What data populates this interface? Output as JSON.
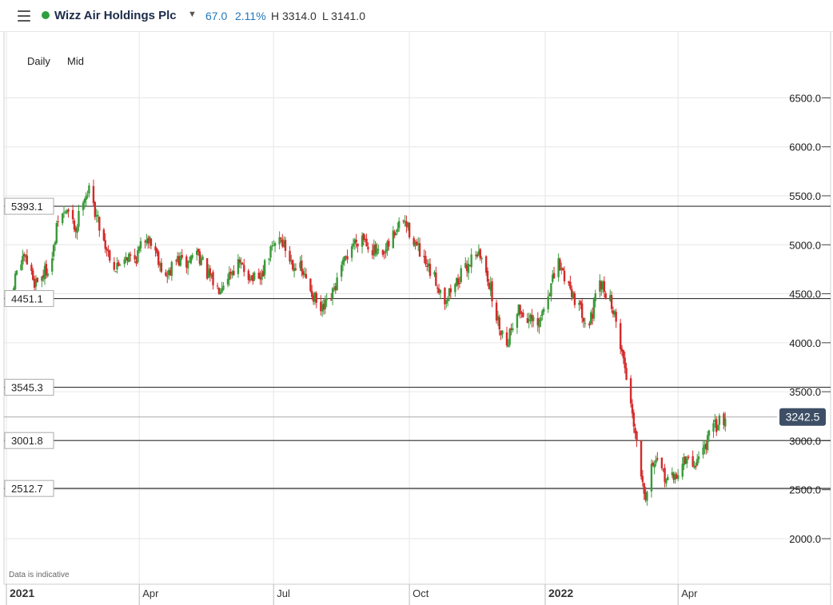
{
  "header": {
    "instrument": "Wizz Air Holdings Plc",
    "change": "67.0",
    "change_pct": "2.11%",
    "high": "H 3314.0",
    "low": "L 3141.0",
    "live_color": "#2e9e3e"
  },
  "controls": {
    "interval": "Daily",
    "price_type": "Mid"
  },
  "footer": {
    "note": "Data is indicative"
  },
  "chart_data": {
    "type": "candlestick",
    "title": "",
    "xlabel": "",
    "ylabel": "",
    "ylim": [
      1750,
      6750
    ],
    "y_ticks": [
      2000,
      2500,
      3000,
      3500,
      4000,
      4500,
      5000,
      5500,
      6000,
      6500
    ],
    "y_tick_labels": [
      "2000.0",
      "2500.0",
      "3000.0",
      "3500.0",
      "4000.0",
      "4500.0",
      "5000.0",
      "5500.0",
      "6000.0",
      "6500.0"
    ],
    "x_ticks": [
      "2021-01-01",
      "2021-04-01",
      "2021-07-01",
      "2021-10-01",
      "2022-01-01",
      "2022-04-01"
    ],
    "x_tick_labels": [
      "2021",
      "Apr",
      "Jul",
      "Oct",
      "2022",
      "Apr"
    ],
    "x_range": [
      "2021-01-01",
      "2022-05-15"
    ],
    "current_price": 3242.5,
    "current_price_label": "3242.5",
    "levels": [
      {
        "value": 5393.1,
        "label": "5393.1"
      },
      {
        "value": 4451.1,
        "label": "4451.1"
      },
      {
        "value": 3545.3,
        "label": "3545.3"
      },
      {
        "value": 3001.8,
        "label": "3001.8"
      },
      {
        "value": 2512.7,
        "label": "2512.7"
      }
    ],
    "colors": {
      "up": "#3a9a3a",
      "down": "#d42a2a",
      "level": "#333333",
      "grid": "#e6e6e6"
    },
    "closes_path": [
      [
        "2021-01-04",
        4400
      ],
      [
        "2021-01-08",
        4750
      ],
      [
        "2021-01-14",
        4850
      ],
      [
        "2021-01-20",
        4620
      ],
      [
        "2021-01-26",
        4700
      ],
      [
        "2021-02-01",
        4850
      ],
      [
        "2021-02-05",
        5250
      ],
      [
        "2021-02-11",
        5350
      ],
      [
        "2021-02-17",
        5150
      ],
      [
        "2021-02-22",
        5500
      ],
      [
        "2021-02-26",
        5550
      ],
      [
        "2021-03-03",
        5300
      ],
      [
        "2021-03-09",
        5000
      ],
      [
        "2021-03-16",
        4750
      ],
      [
        "2021-03-22",
        4900
      ],
      [
        "2021-03-29",
        4850
      ],
      [
        "2021-04-06",
        5100
      ],
      [
        "2021-04-12",
        4950
      ],
      [
        "2021-04-19",
        4650
      ],
      [
        "2021-04-26",
        4850
      ],
      [
        "2021-05-03",
        4800
      ],
      [
        "2021-05-10",
        4950
      ],
      [
        "2021-05-17",
        4700
      ],
      [
        "2021-05-24",
        4550
      ],
      [
        "2021-05-31",
        4700
      ],
      [
        "2021-06-07",
        4800
      ],
      [
        "2021-06-14",
        4700
      ],
      [
        "2021-06-21",
        4600
      ],
      [
        "2021-06-28",
        4900
      ],
      [
        "2021-07-05",
        5100
      ],
      [
        "2021-07-12",
        4850
      ],
      [
        "2021-07-19",
        4750
      ],
      [
        "2021-07-26",
        4550
      ],
      [
        "2021-08-02",
        4300
      ],
      [
        "2021-08-09",
        4450
      ],
      [
        "2021-08-16",
        4750
      ],
      [
        "2021-08-23",
        5000
      ],
      [
        "2021-08-30",
        5100
      ],
      [
        "2021-09-06",
        4950
      ],
      [
        "2021-09-13",
        4850
      ],
      [
        "2021-09-20",
        5100
      ],
      [
        "2021-09-27",
        5250
      ],
      [
        "2021-10-04",
        5050
      ],
      [
        "2021-10-11",
        4800
      ],
      [
        "2021-10-18",
        4650
      ],
      [
        "2021-10-25",
        4450
      ],
      [
        "2021-11-01",
        4600
      ],
      [
        "2021-11-08",
        4750
      ],
      [
        "2021-11-15",
        4950
      ],
      [
        "2021-11-22",
        4750
      ],
      [
        "2021-11-29",
        4250
      ],
      [
        "2021-12-06",
        4000
      ],
      [
        "2021-12-13",
        4350
      ],
      [
        "2021-12-20",
        4250
      ],
      [
        "2021-12-27",
        4150
      ],
      [
        "2022-01-03",
        4500
      ],
      [
        "2022-01-10",
        4800
      ],
      [
        "2022-01-17",
        4600
      ],
      [
        "2022-01-24",
        4350
      ],
      [
        "2022-01-31",
        4200
      ],
      [
        "2022-02-07",
        4600
      ],
      [
        "2022-02-14",
        4450
      ],
      [
        "2022-02-21",
        4000
      ],
      [
        "2022-02-25",
        3650
      ],
      [
        "2022-03-01",
        3300
      ],
      [
        "2022-03-07",
        2700
      ],
      [
        "2022-03-10",
        2450
      ],
      [
        "2022-03-15",
        2800
      ],
      [
        "2022-03-22",
        2650
      ],
      [
        "2022-03-29",
        2600
      ],
      [
        "2022-04-05",
        2800
      ],
      [
        "2022-04-12",
        2750
      ],
      [
        "2022-04-19",
        2950
      ],
      [
        "2022-04-26",
        3150
      ],
      [
        "2022-05-03",
        3242.5
      ]
    ]
  }
}
